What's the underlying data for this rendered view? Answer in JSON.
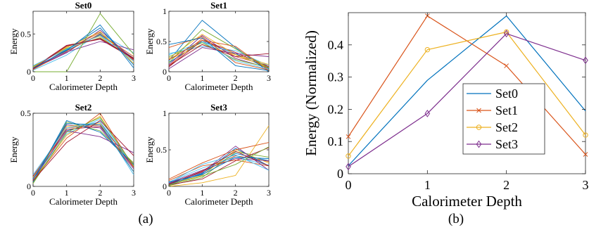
{
  "figure": {
    "caption_a": "(a)",
    "caption_b": "(b)"
  },
  "series_colors": [
    "#0072BD",
    "#D95319",
    "#EDB120",
    "#7E2F8E",
    "#77AC30",
    "#4DBEEE",
    "#A2142F"
  ],
  "chart_data": [
    {
      "id": "set0",
      "type": "line",
      "title": "Set0",
      "xlabel": "Calorimeter Depth",
      "ylabel": "Energy",
      "x": [
        0,
        1,
        2,
        3
      ],
      "xlim": [
        0,
        3
      ],
      "ylim": [
        0,
        0.8
      ],
      "xticks": [
        "0",
        "1",
        "2",
        "3"
      ],
      "yticks": [
        0,
        0.5
      ],
      "ytick_labels": [
        "0",
        "0.5"
      ],
      "series": [
        {
          "values": [
            0.05,
            0.28,
            0.49,
            0.18
          ]
        },
        {
          "values": [
            0.03,
            0.3,
            0.52,
            0.15
          ]
        },
        {
          "values": [
            0.06,
            0.33,
            0.47,
            0.14
          ]
        },
        {
          "values": [
            0.04,
            0.25,
            0.55,
            0.16
          ]
        },
        {
          "values": [
            0.07,
            0.31,
            0.45,
            0.17
          ]
        },
        {
          "values": [
            0.02,
            0.22,
            0.51,
            0.25
          ]
        },
        {
          "values": [
            0.05,
            0.35,
            0.43,
            0.17
          ]
        },
        {
          "values": [
            0.04,
            0.29,
            0.58,
            0.09
          ]
        },
        {
          "values": [
            0.03,
            0.27,
            0.5,
            0.2
          ]
        },
        {
          "values": [
            0.06,
            0.32,
            0.53,
            0.11
          ]
        },
        {
          "values": [
            0.05,
            0.26,
            0.4,
            0.29
          ]
        },
        {
          "values": [
            0.0,
            0.0,
            0.77,
            0.23
          ]
        },
        {
          "values": [
            0.08,
            0.3,
            0.48,
            0.14
          ]
        },
        {
          "values": [
            0.04,
            0.34,
            0.44,
            0.18
          ]
        },
        {
          "values": [
            0.05,
            0.28,
            0.62,
            0.05
          ]
        }
      ]
    },
    {
      "id": "set1",
      "type": "line",
      "title": "Set1",
      "xlabel": "Calorimeter Depth",
      "ylabel": "Energy",
      "x": [
        0,
        1,
        2,
        3
      ],
      "xlim": [
        0,
        3
      ],
      "ylim": [
        0,
        1
      ],
      "xticks": [
        "0",
        "1",
        "2",
        "3"
      ],
      "yticks": [
        0,
        0.5,
        1
      ],
      "ytick_labels": [
        "0",
        "0.5",
        "1"
      ],
      "series": [
        {
          "values": [
            0.15,
            0.5,
            0.3,
            0.05
          ]
        },
        {
          "values": [
            0.1,
            0.55,
            0.25,
            0.1
          ]
        },
        {
          "values": [
            0.2,
            0.45,
            0.28,
            0.07
          ]
        },
        {
          "values": [
            0.12,
            0.6,
            0.22,
            0.06
          ]
        },
        {
          "values": [
            0.25,
            0.48,
            0.2,
            0.07
          ]
        },
        {
          "values": [
            0.3,
            0.42,
            0.35,
            0.1
          ]
        },
        {
          "values": [
            0.08,
            0.52,
            0.32,
            0.08
          ]
        },
        {
          "values": [
            0.18,
            0.85,
            0.4,
            0.0
          ]
        },
        {
          "values": [
            0.4,
            0.58,
            0.15,
            0.03
          ]
        },
        {
          "values": [
            0.22,
            0.62,
            0.28,
            0.12
          ]
        },
        {
          "values": [
            0.05,
            0.4,
            0.3,
            0.25
          ]
        },
        {
          "values": [
            0.15,
            0.7,
            0.38,
            0.06
          ]
        },
        {
          "values": [
            0.28,
            0.5,
            0.18,
            0.04
          ]
        },
        {
          "values": [
            0.1,
            0.45,
            0.25,
            0.3
          ]
        },
        {
          "values": [
            0.45,
            0.56,
            0.1,
            0.02
          ]
        },
        {
          "values": [
            0.2,
            0.52,
            0.42,
            0.02
          ]
        }
      ]
    },
    {
      "id": "set2",
      "type": "line",
      "title": "Set2",
      "xlabel": "Calorimeter Depth",
      "ylabel": "Energy",
      "x": [
        0,
        1,
        2,
        3
      ],
      "xlim": [
        0,
        3
      ],
      "ylim": [
        0,
        0.5
      ],
      "xticks": [
        "0",
        "1",
        "2",
        "3"
      ],
      "yticks": [
        0,
        0.5
      ],
      "ytick_labels": [
        "0",
        "0.5"
      ],
      "series": [
        {
          "values": [
            0.05,
            0.38,
            0.44,
            0.13
          ]
        },
        {
          "values": [
            0.03,
            0.4,
            0.42,
            0.15
          ]
        },
        {
          "values": [
            0.04,
            0.35,
            0.48,
            0.13
          ]
        },
        {
          "values": [
            0.06,
            0.42,
            0.4,
            0.12
          ]
        },
        {
          "values": [
            0.02,
            0.44,
            0.38,
            0.16
          ]
        },
        {
          "values": [
            0.05,
            0.36,
            0.46,
            0.13
          ]
        },
        {
          "values": [
            0.07,
            0.39,
            0.41,
            0.13
          ]
        },
        {
          "values": [
            0.03,
            0.45,
            0.37,
            0.15
          ]
        },
        {
          "values": [
            0.04,
            0.33,
            0.5,
            0.13
          ]
        },
        {
          "values": [
            0.06,
            0.41,
            0.43,
            0.1
          ]
        },
        {
          "values": [
            0.05,
            0.38,
            0.34,
            0.23
          ]
        },
        {
          "values": [
            0.02,
            0.37,
            0.47,
            0.14
          ]
        },
        {
          "values": [
            0.08,
            0.4,
            0.44,
            0.08
          ]
        },
        {
          "values": [
            0.04,
            0.3,
            0.45,
            0.21
          ]
        },
        {
          "values": [
            0.05,
            0.43,
            0.42,
            0.1
          ]
        }
      ]
    },
    {
      "id": "set3",
      "type": "line",
      "title": "Set3",
      "xlabel": "Calorimeter Depth",
      "ylabel": "Energy",
      "x": [
        0,
        1,
        2,
        3
      ],
      "xlim": [
        0,
        3
      ],
      "ylim": [
        0,
        1
      ],
      "xticks": [
        "0",
        "1",
        "2",
        "3"
      ],
      "yticks": [
        0,
        0.5,
        1
      ],
      "ytick_labels": [
        "0",
        "0.5",
        "1"
      ],
      "series": [
        {
          "values": [
            0.02,
            0.18,
            0.45,
            0.35
          ]
        },
        {
          "values": [
            0.04,
            0.2,
            0.42,
            0.34
          ]
        },
        {
          "values": [
            0.03,
            0.15,
            0.5,
            0.32
          ]
        },
        {
          "values": [
            0.05,
            0.22,
            0.38,
            0.35
          ]
        },
        {
          "values": [
            0.01,
            0.12,
            0.47,
            0.4
          ]
        },
        {
          "values": [
            0.06,
            0.25,
            0.4,
            0.29
          ]
        },
        {
          "values": [
            0.02,
            0.1,
            0.35,
            0.53
          ]
        },
        {
          "values": [
            0.03,
            0.17,
            0.52,
            0.28
          ]
        },
        {
          "values": [
            0.08,
            0.28,
            0.36,
            0.28
          ]
        },
        {
          "values": [
            0.0,
            0.05,
            0.15,
            0.83
          ]
        },
        {
          "values": [
            0.04,
            0.19,
            0.55,
            0.22
          ]
        },
        {
          "values": [
            0.02,
            0.14,
            0.3,
            0.54
          ]
        },
        {
          "values": [
            0.05,
            0.3,
            0.43,
            0.22
          ]
        },
        {
          "values": [
            0.03,
            0.21,
            0.48,
            0.28
          ]
        },
        {
          "values": [
            0.06,
            0.16,
            0.4,
            0.38
          ]
        },
        {
          "values": [
            0.1,
            0.32,
            0.5,
            0.6
          ]
        }
      ]
    },
    {
      "id": "avg",
      "type": "line",
      "xlabel": "Calorimeter Depth",
      "ylabel": "Energy (Normalized)",
      "x": [
        0,
        1,
        2,
        3
      ],
      "xlim": [
        0,
        3
      ],
      "ylim": [
        0,
        0.5
      ],
      "xticks": [
        "0",
        "1",
        "2",
        "3"
      ],
      "yticks": [
        0,
        0.1,
        0.2,
        0.3,
        0.4
      ],
      "ytick_labels": [
        "0",
        "0.1",
        "0.2",
        "0.3",
        "0.4"
      ],
      "legend_position": "lower-right",
      "series": [
        {
          "name": "Set0",
          "values": [
            0.025,
            0.29,
            0.49,
            0.195
          ],
          "marker": "none",
          "color": "#0072BD"
        },
        {
          "name": "Set1",
          "values": [
            0.115,
            0.49,
            0.335,
            0.06
          ],
          "marker": "x",
          "color": "#D95319"
        },
        {
          "name": "Set2",
          "values": [
            0.055,
            0.385,
            0.44,
            0.12
          ],
          "marker": "o",
          "color": "#EDB120"
        },
        {
          "name": "Set3",
          "values": [
            0.022,
            0.187,
            0.435,
            0.352
          ],
          "marker": "d",
          "color": "#7E2F8E"
        }
      ]
    }
  ]
}
